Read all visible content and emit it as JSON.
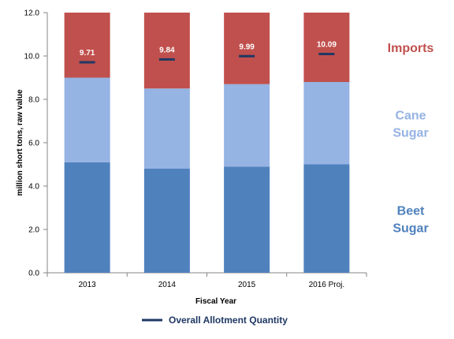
{
  "chart_data": {
    "type": "bar",
    "stacked": true,
    "categories": [
      "2013",
      "2014",
      "2015",
      "2016 Proj."
    ],
    "series": [
      {
        "key": "beet",
        "label_lines": [
          "Beet",
          "Sugar"
        ],
        "color": "#4f81bd",
        "values": [
          5.1,
          4.8,
          4.9,
          5.0
        ]
      },
      {
        "key": "cane",
        "label_lines": [
          "Cane",
          "Sugar"
        ],
        "color": "#95b3e3",
        "values": [
          3.9,
          3.7,
          3.8,
          3.8
        ]
      },
      {
        "key": "imports",
        "label_lines": [
          "Imports"
        ],
        "color": "#c0504d",
        "values": [
          3.0,
          3.5,
          3.3,
          3.2
        ]
      }
    ],
    "allotment": {
      "name": "Overall Allotment Quantity",
      "color": "#1f3864",
      "values": [
        9.71,
        9.84,
        9.99,
        10.09
      ],
      "labels": [
        "9.71",
        "9.84",
        "9.99",
        "10.09"
      ]
    },
    "xlabel": "Fiscal Year",
    "ylabel": "million short tons, raw value",
    "ylim": [
      0,
      12
    ],
    "yticks": [
      0,
      2,
      4,
      6,
      8,
      10,
      12
    ],
    "ytick_labels": [
      "0.0",
      "2.0",
      "4.0",
      "6.0",
      "8.0",
      "10.0",
      "12.0"
    ],
    "grid": false,
    "legend_position": "bottom"
  }
}
